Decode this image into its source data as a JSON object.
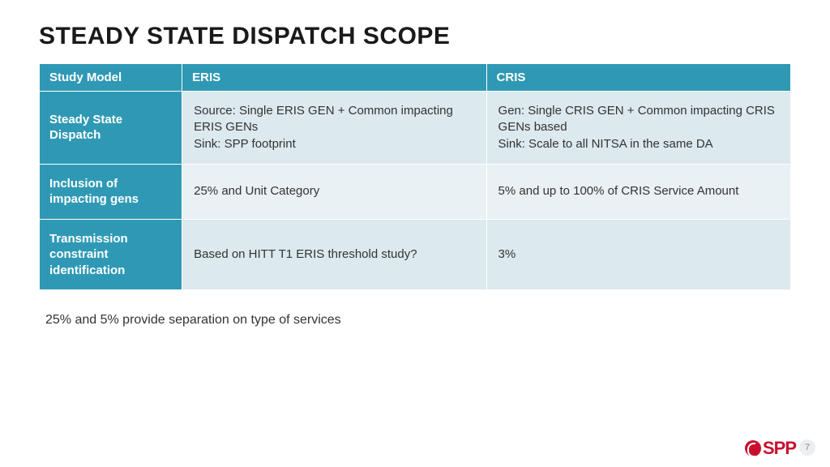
{
  "title": "STEADY STATE DISPATCH SCOPE",
  "table": {
    "columns": [
      "Study Model",
      "ERIS",
      "CRIS"
    ],
    "rows": [
      {
        "label": "Steady State Dispatch",
        "eris": "Source: Single ERIS GEN + Common impacting ERIS GENs\nSink: SPP footprint",
        "cris": "Gen: Single CRIS GEN + Common impacting CRIS GENs based\nSink: Scale to all NITSA in the same DA"
      },
      {
        "label": "Inclusion of impacting gens",
        "eris": "25% and Unit Category",
        "cris": "5% and up to 100% of CRIS Service Amount"
      },
      {
        "label": "Transmission constraint identification",
        "eris": "Based on HITT T1 ERIS threshold study?",
        "cris": "3%"
      }
    ],
    "header_bg": "#2f99b5",
    "header_fg": "#ffffff",
    "rowlabel_bg": "#2f99b5",
    "rowlabel_fg": "#ffffff",
    "cell_bg": "#dce9ee",
    "cell_bg_alt": "#e9f1f4",
    "cell_fg": "#333333",
    "border_color": "#ffffff",
    "header_fontsize": 15,
    "cell_fontsize": 15
  },
  "footnote": "25% and 5% provide separation on type of services",
  "page_number": "7",
  "logo_text": "SPP",
  "colors": {
    "title": "#1a1a1a",
    "brand_red": "#c8102e",
    "page_bg": "#ffffff"
  },
  "title_fontsize": 30
}
